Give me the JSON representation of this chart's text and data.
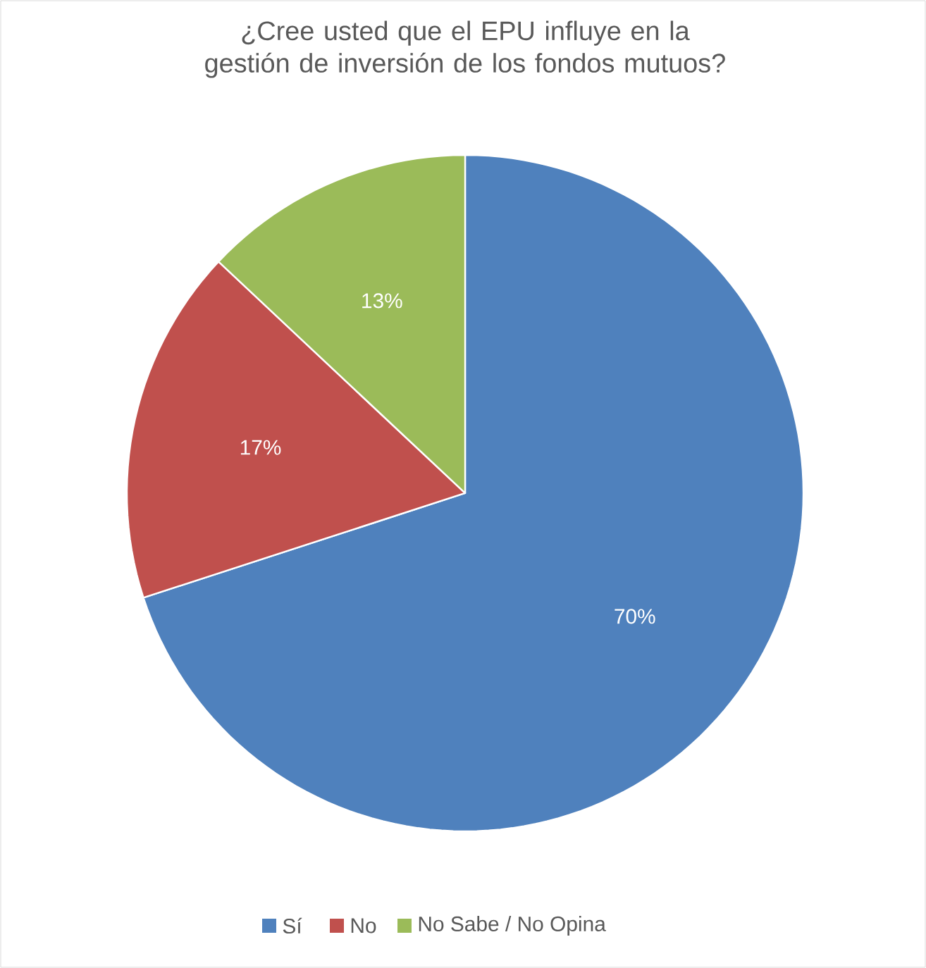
{
  "chart_data": {
    "type": "pie",
    "title": "¿Cree usted que el EPU influye en la gestión de inversión de los fondos mutuos?",
    "categories": [
      "Sí",
      "No",
      "No Sabe / No Opina"
    ],
    "values": [
      70,
      17,
      13
    ],
    "colors": [
      "#4f81bd",
      "#c0504d",
      "#9bbb59"
    ],
    "value_labels": [
      "70%",
      "17%",
      "13%"
    ],
    "legend": "bottom"
  }
}
